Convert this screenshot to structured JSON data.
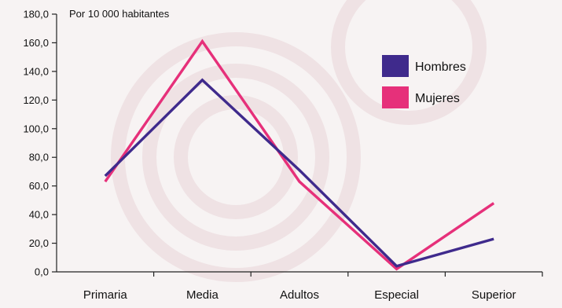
{
  "chart_data": {
    "type": "line",
    "title": "",
    "unit_label": "Por 10 000 habitantes",
    "xlabel": "",
    "ylabel": "",
    "categories": [
      "Primaria",
      "Media",
      "Adultos",
      "Especial",
      "Superior"
    ],
    "ylim": [
      0,
      180
    ],
    "yticks": [
      0,
      20,
      40,
      60,
      80,
      100,
      120,
      140,
      160,
      180
    ],
    "ytick_labels": [
      "0,0",
      "20,0",
      "40,0",
      "60,0",
      "80,0",
      "100,0",
      "120,0",
      "140,0",
      "160,0",
      "180,0"
    ],
    "grid": false,
    "legend_position": "top-right",
    "series": [
      {
        "name": "Hombres",
        "color": "#3f2a8c",
        "values": [
          67,
          134,
          71,
          4,
          23
        ]
      },
      {
        "name": "Mujeres",
        "color": "#e6307a",
        "values": [
          63,
          161,
          63,
          2,
          48
        ]
      }
    ]
  }
}
